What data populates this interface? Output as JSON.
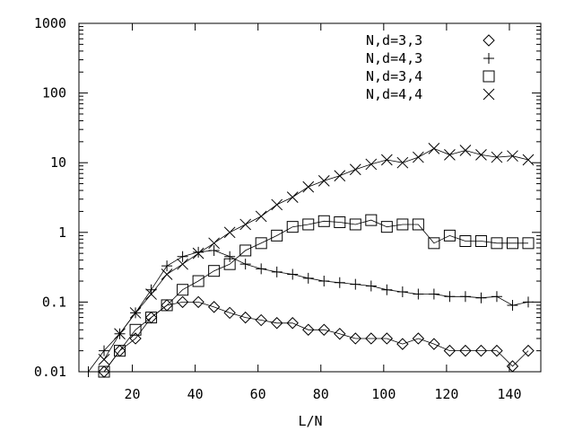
{
  "chart_data": {
    "type": "line",
    "title": "",
    "xlabel": "L/N",
    "ylabel": "",
    "xlim": [
      3,
      150
    ],
    "ylim": [
      0.01,
      1000
    ],
    "yscale": "log",
    "grid": false,
    "legend_position": "top-right",
    "x_ticks": [
      "20",
      "40",
      "60",
      "80",
      "100",
      "120",
      "140"
    ],
    "y_ticks": [
      "0.01",
      "0.1",
      "1",
      "10",
      "100",
      "1000"
    ],
    "series": [
      {
        "name": "N,d=3,3",
        "marker": "diamond",
        "x": [
          11,
          16,
          21,
          26,
          31,
          36,
          41,
          46,
          51,
          56,
          61,
          66,
          71,
          76,
          81,
          86,
          91,
          96,
          101,
          106,
          111,
          116,
          121,
          126,
          131,
          136,
          141,
          146
        ],
        "y": [
          0.01,
          0.02,
          0.03,
          0.06,
          0.09,
          0.1,
          0.1,
          0.085,
          0.07,
          0.06,
          0.055,
          0.05,
          0.05,
          0.04,
          0.04,
          0.035,
          0.03,
          0.03,
          0.03,
          0.025,
          0.03,
          0.025,
          0.02,
          0.02,
          0.02,
          0.02,
          0.012,
          0.02
        ]
      },
      {
        "name": "N,d=4,3",
        "marker": "plus",
        "x": [
          6,
          11,
          16,
          21,
          26,
          31,
          36,
          41,
          46,
          51,
          56,
          61,
          66,
          71,
          76,
          81,
          86,
          91,
          96,
          101,
          106,
          111,
          116,
          121,
          126,
          131,
          136,
          141,
          146
        ],
        "y": [
          0.01,
          0.02,
          0.035,
          0.07,
          0.15,
          0.33,
          0.45,
          0.52,
          0.55,
          0.45,
          0.35,
          0.3,
          0.27,
          0.25,
          0.22,
          0.2,
          0.19,
          0.18,
          0.17,
          0.15,
          0.14,
          0.13,
          0.13,
          0.12,
          0.12,
          0.115,
          0.12,
          0.09,
          0.1
        ]
      },
      {
        "name": "N,d=3,4",
        "marker": "square",
        "x": [
          11,
          16,
          21,
          26,
          31,
          36,
          41,
          46,
          51,
          56,
          61,
          66,
          71,
          76,
          81,
          86,
          91,
          96,
          101,
          106,
          111,
          116,
          121,
          126,
          131,
          136,
          141,
          146
        ],
        "y": [
          0.01,
          0.02,
          0.04,
          0.06,
          0.09,
          0.15,
          0.2,
          0.28,
          0.35,
          0.55,
          0.7,
          0.9,
          1.2,
          1.3,
          1.45,
          1.4,
          1.3,
          1.5,
          1.2,
          1.3,
          1.3,
          0.7,
          0.9,
          0.75,
          0.75,
          0.7,
          0.7,
          0.7
        ]
      },
      {
        "name": "N,d=4,4",
        "marker": "cross",
        "x": [
          11,
          16,
          21,
          26,
          31,
          36,
          41,
          46,
          51,
          56,
          61,
          66,
          71,
          76,
          81,
          86,
          91,
          96,
          101,
          106,
          111,
          116,
          121,
          126,
          131,
          136,
          141,
          146
        ],
        "y": [
          0.015,
          0.035,
          0.07,
          0.13,
          0.25,
          0.35,
          0.5,
          0.7,
          1.0,
          1.3,
          1.7,
          2.5,
          3.2,
          4.5,
          5.5,
          6.5,
          8.0,
          9.5,
          11.0,
          10.0,
          12.0,
          16.0,
          13.0,
          15.0,
          13.0,
          12.0,
          12.5,
          11.0
        ]
      }
    ]
  }
}
